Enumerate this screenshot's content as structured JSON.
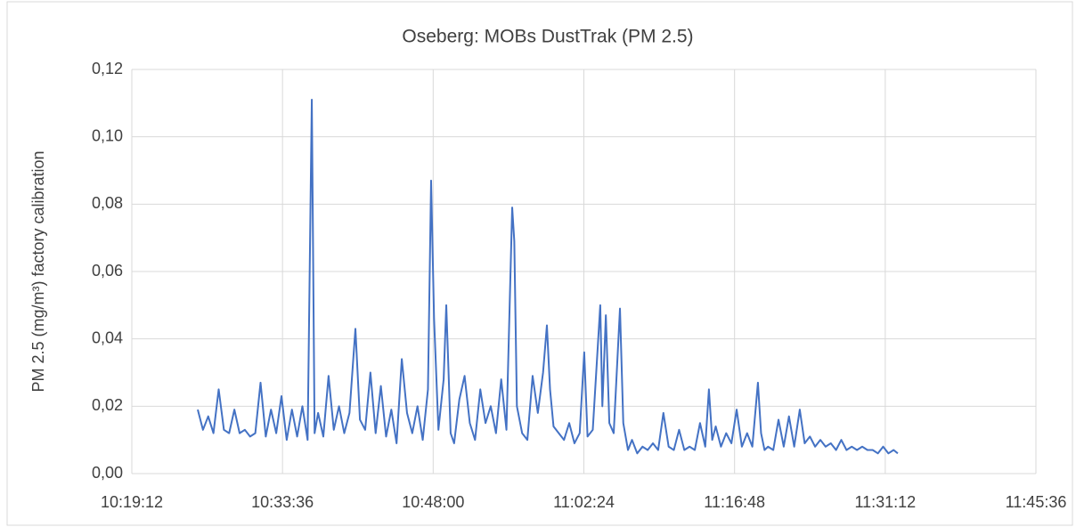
{
  "chart_data": {
    "type": "line",
    "title": "Oseberg: MOBs DustTrak (PM 2.5)",
    "y_label": "PM 2.5 (mg/m³) factory calibration",
    "color": "#4472c4",
    "grid": true,
    "xlim": [
      "10:19:12",
      "11:45:36"
    ],
    "xticks": [
      "10:19:12",
      "10:33:36",
      "10:48:00",
      "11:02:24",
      "11:16:48",
      "11:31:12",
      "11:45:36"
    ],
    "ylim": [
      0,
      0.12
    ],
    "yticks": [
      {
        "value": 0,
        "label": "0,00"
      },
      {
        "value": 0.02,
        "label": "0,02"
      },
      {
        "value": 0.04,
        "label": "0,04"
      },
      {
        "value": 0.06,
        "label": "0,06"
      },
      {
        "value": 0.08,
        "label": "0,08"
      },
      {
        "value": 0.1,
        "label": "0,10"
      },
      {
        "value": 0.12,
        "label": "0,12"
      }
    ],
    "x": [
      "10:25:30",
      "10:26:00",
      "10:26:30",
      "10:27:00",
      "10:27:30",
      "10:28:00",
      "10:28:30",
      "10:29:00",
      "10:29:30",
      "10:30:00",
      "10:30:30",
      "10:31:00",
      "10:31:30",
      "10:32:00",
      "10:32:30",
      "10:33:00",
      "10:33:30",
      "10:34:00",
      "10:34:30",
      "10:35:00",
      "10:35:30",
      "10:36:00",
      "10:36:24",
      "10:36:40",
      "10:37:00",
      "10:37:30",
      "10:38:00",
      "10:38:30",
      "10:39:00",
      "10:39:30",
      "10:40:00",
      "10:40:34",
      "10:41:00",
      "10:41:30",
      "10:42:00",
      "10:42:30",
      "10:43:00",
      "10:43:30",
      "10:44:00",
      "10:44:30",
      "10:45:00",
      "10:45:30",
      "10:46:00",
      "10:46:30",
      "10:47:00",
      "10:47:30",
      "10:47:48",
      "10:48:05",
      "10:48:30",
      "10:49:00",
      "10:49:15",
      "10:49:40",
      "10:50:00",
      "10:50:30",
      "10:51:00",
      "10:51:30",
      "10:52:00",
      "10:52:30",
      "10:53:00",
      "10:53:30",
      "10:54:00",
      "10:54:30",
      "10:55:00",
      "10:55:33",
      "10:55:45",
      "10:56:00",
      "10:56:30",
      "10:57:00",
      "10:57:30",
      "10:58:00",
      "10:58:30",
      "10:58:52",
      "10:59:10",
      "10:59:30",
      "11:00:00",
      "11:00:30",
      "11:01:00",
      "11:01:30",
      "11:02:00",
      "11:02:26",
      "11:02:45",
      "11:03:15",
      "11:03:58",
      "11:04:10",
      "11:04:30",
      "11:04:50",
      "11:05:15",
      "11:05:51",
      "11:06:10",
      "11:06:37",
      "11:07:00",
      "11:07:30",
      "11:08:00",
      "11:08:30",
      "11:09:00",
      "11:09:30",
      "11:10:00",
      "11:10:30",
      "11:11:00",
      "11:11:30",
      "11:12:00",
      "11:12:30",
      "11:13:00",
      "11:13:30",
      "11:14:00",
      "11:14:21",
      "11:14:40",
      "11:15:00",
      "11:15:30",
      "11:16:00",
      "11:16:30",
      "11:17:00",
      "11:17:30",
      "11:18:00",
      "11:18:30",
      "11:19:02",
      "11:19:20",
      "11:19:40",
      "11:20:00",
      "11:20:30",
      "11:21:00",
      "11:21:30",
      "11:22:00",
      "11:22:30",
      "11:23:02",
      "11:23:30",
      "11:24:00",
      "11:24:30",
      "11:25:00",
      "11:25:30",
      "11:26:00",
      "11:26:30",
      "11:27:00",
      "11:27:30",
      "11:28:00",
      "11:28:30",
      "11:29:00",
      "11:29:30",
      "11:30:00",
      "11:30:30",
      "11:31:00",
      "11:31:30",
      "11:32:00",
      "11:32:24"
    ],
    "values": [
      0.019,
      0.013,
      0.017,
      0.012,
      0.025,
      0.013,
      0.012,
      0.019,
      0.012,
      0.013,
      0.011,
      0.012,
      0.027,
      0.011,
      0.019,
      0.012,
      0.023,
      0.01,
      0.019,
      0.011,
      0.02,
      0.01,
      0.111,
      0.012,
      0.018,
      0.011,
      0.029,
      0.013,
      0.02,
      0.012,
      0.018,
      0.043,
      0.016,
      0.013,
      0.03,
      0.012,
      0.026,
      0.011,
      0.019,
      0.009,
      0.034,
      0.018,
      0.012,
      0.02,
      0.01,
      0.025,
      0.087,
      0.046,
      0.013,
      0.028,
      0.05,
      0.012,
      0.009,
      0.022,
      0.029,
      0.015,
      0.01,
      0.025,
      0.015,
      0.02,
      0.012,
      0.028,
      0.013,
      0.079,
      0.069,
      0.02,
      0.012,
      0.01,
      0.029,
      0.018,
      0.03,
      0.044,
      0.025,
      0.014,
      0.012,
      0.01,
      0.015,
      0.009,
      0.012,
      0.036,
      0.011,
      0.013,
      0.05,
      0.02,
      0.047,
      0.015,
      0.012,
      0.049,
      0.015,
      0.007,
      0.01,
      0.006,
      0.008,
      0.007,
      0.009,
      0.007,
      0.018,
      0.008,
      0.007,
      0.013,
      0.007,
      0.008,
      0.007,
      0.015,
      0.008,
      0.025,
      0.01,
      0.014,
      0.008,
      0.012,
      0.009,
      0.019,
      0.008,
      0.012,
      0.008,
      0.027,
      0.012,
      0.007,
      0.008,
      0.007,
      0.016,
      0.008,
      0.017,
      0.008,
      0.019,
      0.009,
      0.011,
      0.008,
      0.01,
      0.008,
      0.009,
      0.007,
      0.01,
      0.007,
      0.008,
      0.007,
      0.008,
      0.007,
      0.007,
      0.006,
      0.008,
      0.006,
      0.007,
      0.006
    ]
  }
}
